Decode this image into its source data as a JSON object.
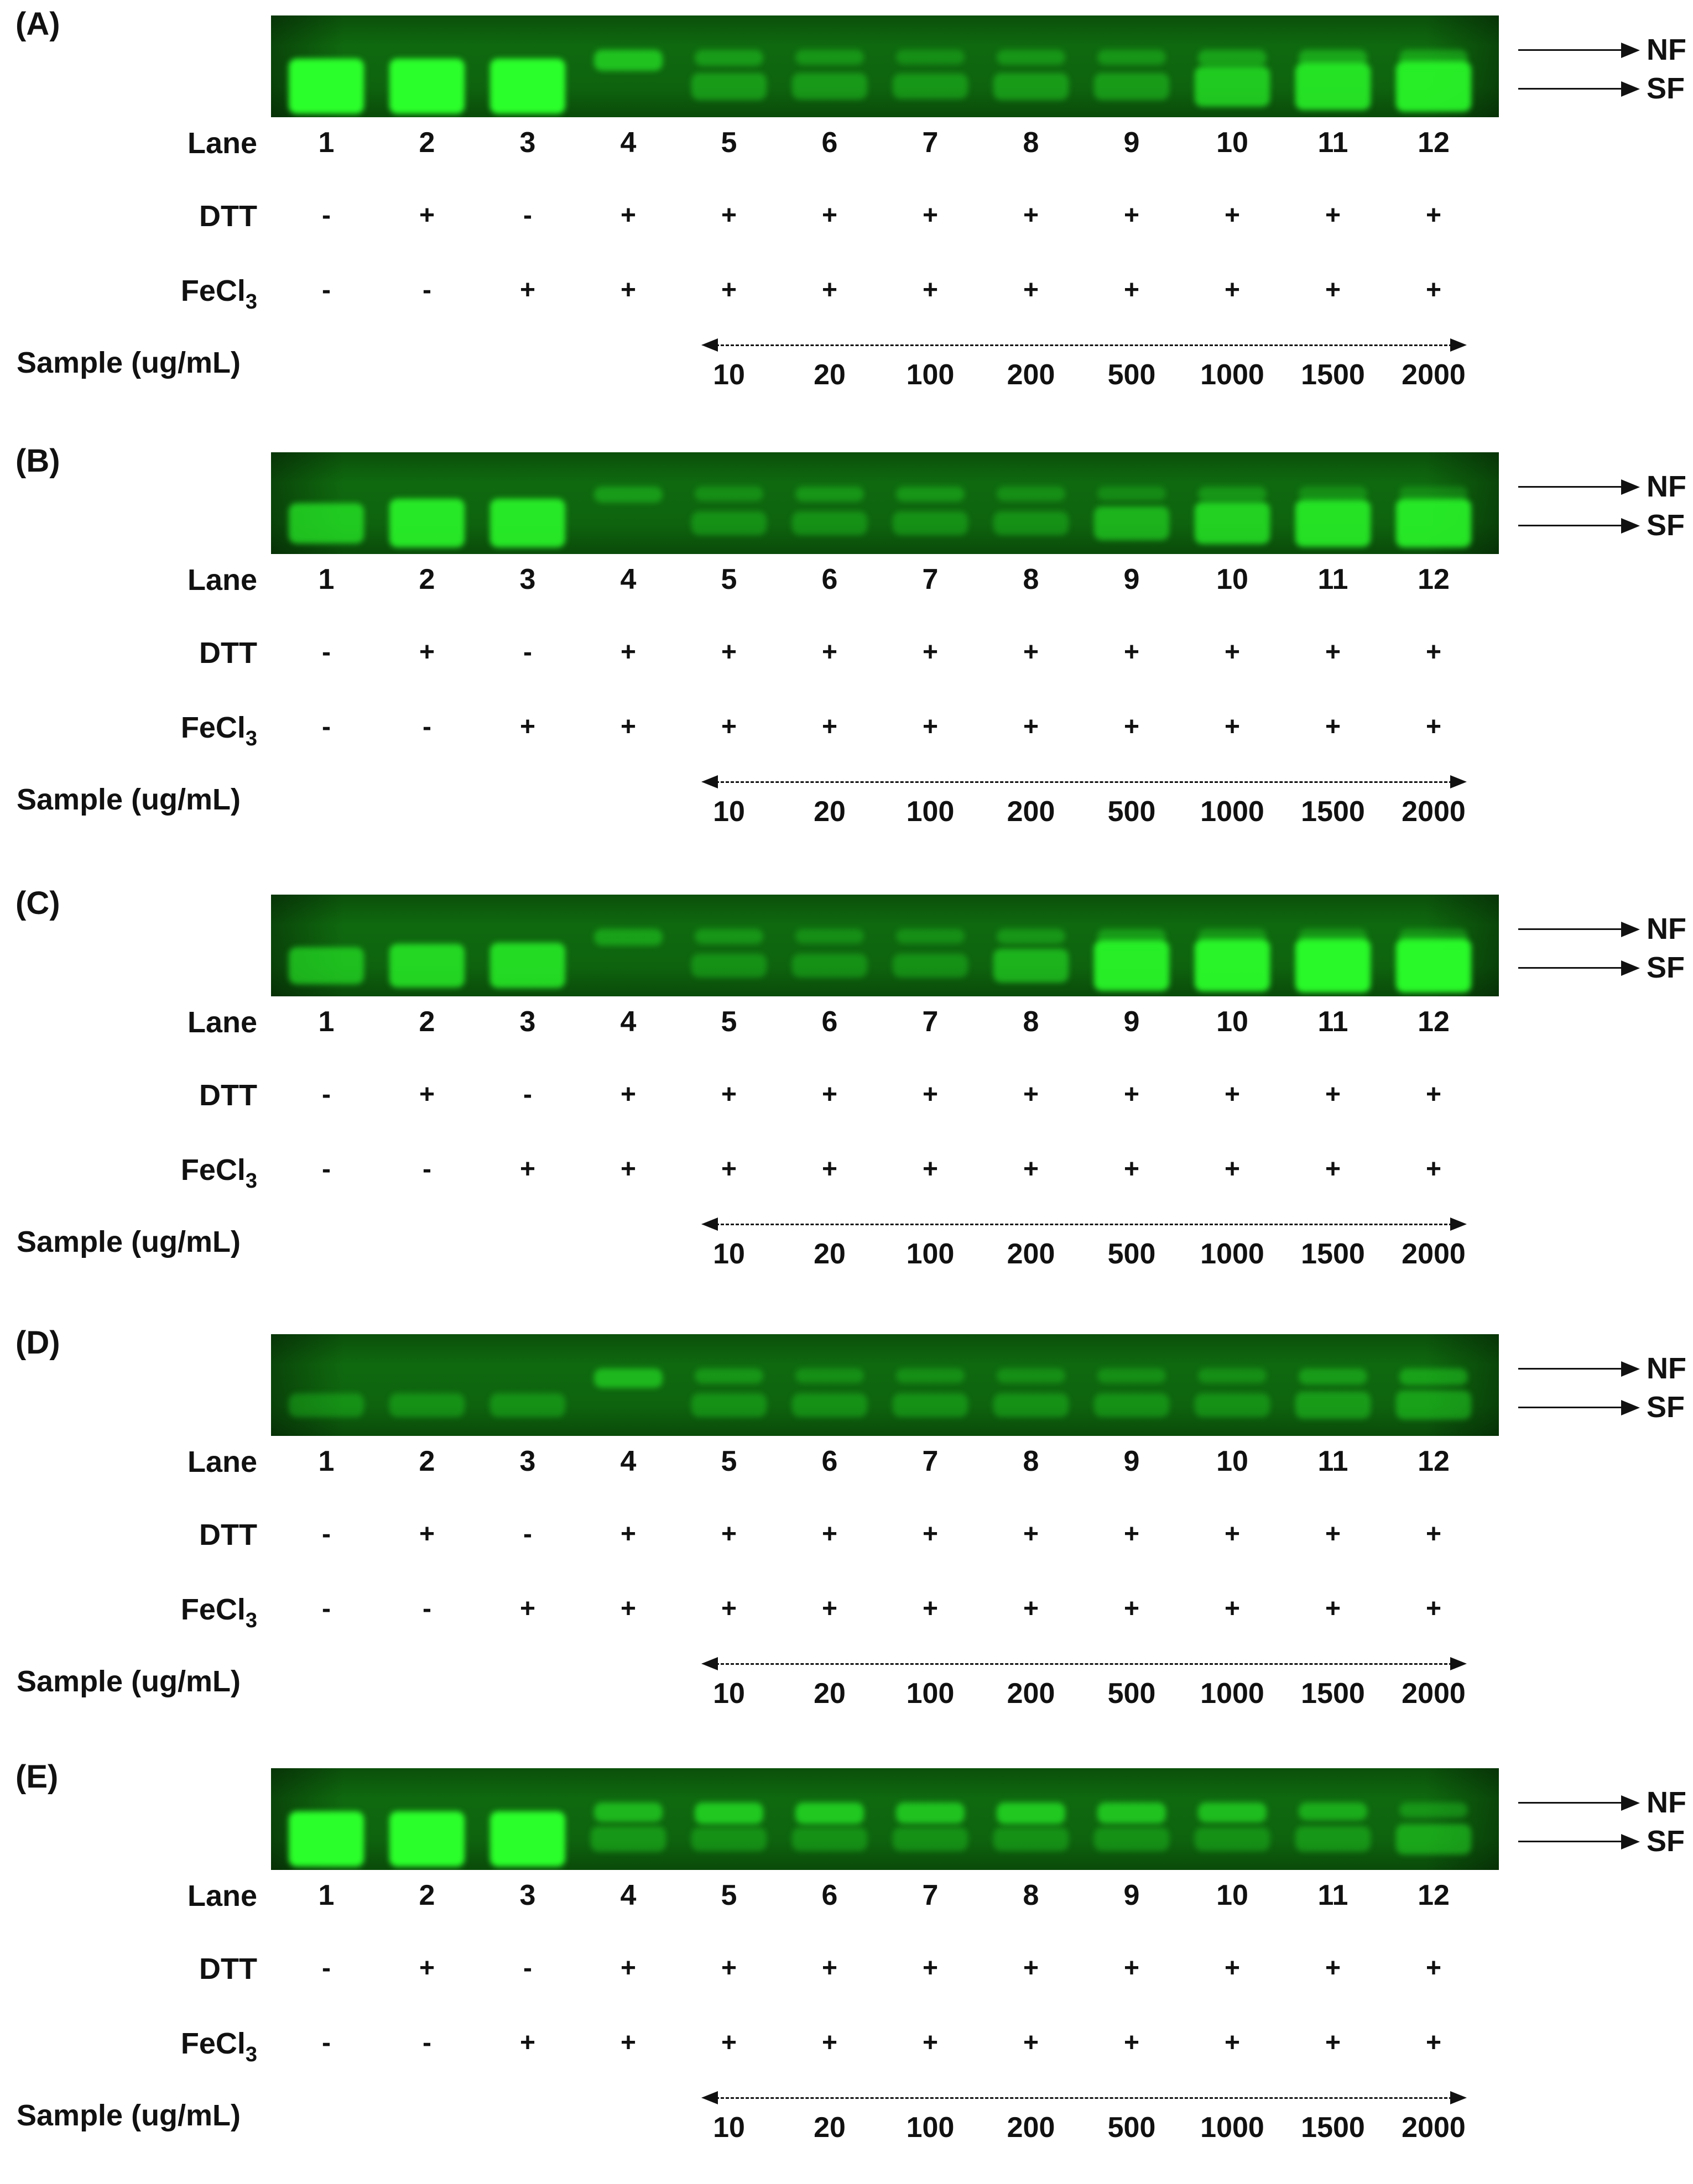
{
  "row_labels": {
    "lane": "Lane",
    "dtt": "DTT",
    "fecl3_main": "FeCl",
    "fecl3_sub": "3",
    "sample": "Sample (ug/mL)"
  },
  "band_labels": {
    "nf": "NF",
    "sf": "SF"
  },
  "lanes": [
    "1",
    "2",
    "3",
    "4",
    "5",
    "6",
    "7",
    "8",
    "9",
    "10",
    "11",
    "12"
  ],
  "dtt": [
    "-",
    "+",
    "-",
    "+",
    "+",
    "+",
    "+",
    "+",
    "+",
    "+",
    "+",
    "+"
  ],
  "fecl3": [
    "-",
    "-",
    "+",
    "+",
    "+",
    "+",
    "+",
    "+",
    "+",
    "+",
    "+",
    "+"
  ],
  "concentrations": [
    "10",
    "20",
    "100",
    "200",
    "500",
    "1000",
    "1500",
    "2000"
  ],
  "colors": {
    "gel_dark": "#0a4a0a",
    "gel_mid": "#0f6a0f",
    "band_bright": "#2bff2b"
  },
  "panels": [
    {
      "label": "(A)",
      "sf_intensity": [
        1.0,
        1.0,
        1.0,
        0.0,
        0.15,
        0.12,
        0.1,
        0.15,
        0.15,
        0.55,
        0.75,
        0.85
      ],
      "nf_intensity": [
        0.0,
        0.0,
        0.0,
        0.6,
        0.25,
        0.2,
        0.15,
        0.2,
        0.2,
        0.3,
        0.35,
        0.3
      ]
    },
    {
      "label": "(B)",
      "sf_intensity": [
        0.55,
        0.8,
        0.8,
        0.0,
        0.05,
        0.05,
        0.05,
        0.05,
        0.35,
        0.6,
        0.75,
        0.8
      ],
      "nf_intensity": [
        0.0,
        0.0,
        0.0,
        0.25,
        0.15,
        0.2,
        0.2,
        0.15,
        0.1,
        0.2,
        0.15,
        0.1
      ]
    },
    {
      "label": "(C)",
      "sf_intensity": [
        0.45,
        0.65,
        0.7,
        0.0,
        0.05,
        0.05,
        0.05,
        0.35,
        0.85,
        0.9,
        0.95,
        0.95
      ],
      "nf_intensity": [
        0.0,
        0.0,
        0.0,
        0.3,
        0.2,
        0.15,
        0.15,
        0.2,
        0.25,
        0.2,
        0.2,
        0.2
      ]
    },
    {
      "label": "(D)",
      "sf_intensity": [
        0.05,
        0.05,
        0.05,
        0.0,
        0.05,
        0.05,
        0.05,
        0.05,
        0.05,
        0.05,
        0.15,
        0.2
      ],
      "nf_intensity": [
        0.0,
        0.0,
        0.0,
        0.5,
        0.2,
        0.15,
        0.15,
        0.15,
        0.15,
        0.15,
        0.25,
        0.3
      ]
    },
    {
      "label": "(E)",
      "sf_intensity": [
        1.0,
        1.0,
        1.0,
        0.1,
        0.05,
        0.05,
        0.05,
        0.05,
        0.05,
        0.05,
        0.1,
        0.25
      ],
      "nf_intensity": [
        0.0,
        0.0,
        0.0,
        0.5,
        0.65,
        0.65,
        0.6,
        0.65,
        0.6,
        0.55,
        0.4,
        0.2
      ]
    }
  ]
}
